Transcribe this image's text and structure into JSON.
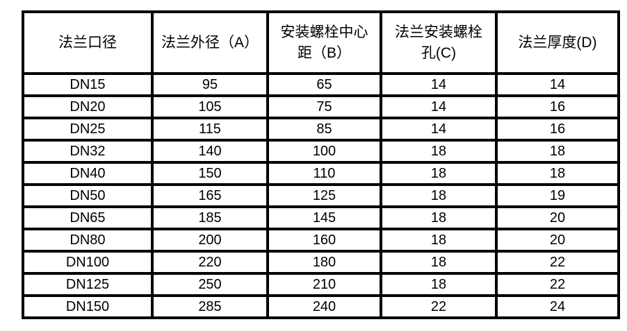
{
  "chart_data": {
    "type": "table",
    "title": "",
    "columns": [
      {
        "key": "dn",
        "lines": [
          "法兰口径"
        ]
      },
      {
        "key": "a",
        "lines": [
          "法兰外径（A）"
        ]
      },
      {
        "key": "b",
        "lines": [
          "安装螺栓中心",
          "距（B）"
        ]
      },
      {
        "key": "c",
        "lines": [
          "法兰安装螺栓",
          "孔(C)"
        ]
      },
      {
        "key": "d",
        "lines": [
          "法兰厚度(D)"
        ]
      }
    ],
    "rows": [
      [
        "DN15",
        "95",
        "65",
        "14",
        "14"
      ],
      [
        "DN20",
        "105",
        "75",
        "14",
        "16"
      ],
      [
        "DN25",
        "115",
        "85",
        "14",
        "16"
      ],
      [
        "DN32",
        "140",
        "100",
        "18",
        "18"
      ],
      [
        "DN40",
        "150",
        "110",
        "18",
        "18"
      ],
      [
        "DN50",
        "165",
        "125",
        "18",
        "19"
      ],
      [
        "DN65",
        "185",
        "145",
        "18",
        "20"
      ],
      [
        "DN80",
        "200",
        "160",
        "18",
        "20"
      ],
      [
        "DN100",
        "220",
        "180",
        "18",
        "22"
      ],
      [
        "DN125",
        "250",
        "210",
        "18",
        "22"
      ],
      [
        "DN150",
        "285",
        "240",
        "22",
        "24"
      ]
    ]
  },
  "colors": {
    "border": "#000000",
    "text": "#000000",
    "background": "#ffffff"
  }
}
